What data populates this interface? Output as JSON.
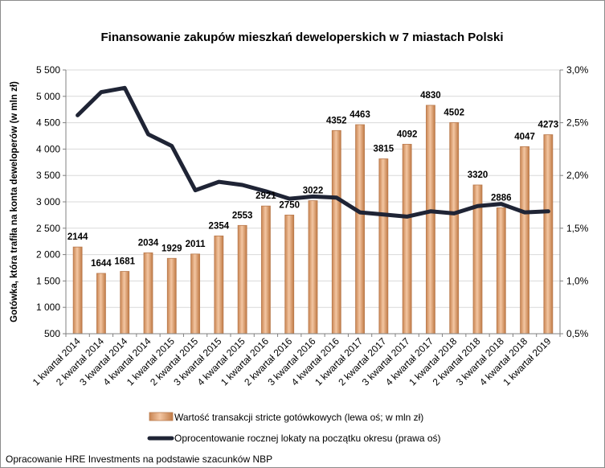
{
  "chart_data": {
    "type": "bar+line",
    "title": "Finansowanie zakupów mieszkań deweloperskich w 7 miastach Polski",
    "ylabel_left": "Gotówka, która trafiła na konta deweloperów (w mln zł)",
    "ylim_left": [
      500,
      5500
    ],
    "yticks_left": [
      "500",
      "1 000",
      "1 500",
      "2 000",
      "2 500",
      "3 000",
      "3 500",
      "4 000",
      "4 500",
      "5 000",
      "5 500"
    ],
    "ylim_right": [
      0.5,
      3.0
    ],
    "yticks_right": [
      "0,5%",
      "1,0%",
      "1,5%",
      "2,0%",
      "2,5%",
      "3,0%"
    ],
    "categories": [
      "1 kwartał 2014",
      "2 kwartał 2014",
      "3 kwartał 2014",
      "4 kwartał 2014",
      "1 kwartał 2015",
      "2 kwartał 2015",
      "3 kwartał 2015",
      "4 kwartał 2015",
      "1 kwartał 2016",
      "2 kwartał 2016",
      "3 kwartał 2016",
      "4 kwartał 2016",
      "1 kwartał 2017",
      "2 kwartał 2017",
      "3 kwartał 2017",
      "4 kwartał 2017",
      "1 kwartał 2018",
      "2 kwartał 2018",
      "3 kwartał 2018",
      "4 kwartał 2018",
      "1 kwartał 2019"
    ],
    "series": [
      {
        "name": "Wartość transakcji stricte gotówkowych (lewa oś; w mln zł)",
        "axis": "left",
        "kind": "bar",
        "values": [
          2144,
          1644,
          1681,
          2034,
          1929,
          2011,
          2354,
          2553,
          2921,
          2750,
          3022,
          4352,
          4463,
          3815,
          4092,
          4830,
          4502,
          3320,
          2886,
          4047,
          4273
        ],
        "labels": [
          "2144",
          "1644",
          "1681",
          "2034",
          "1929",
          "2011",
          "2354",
          "2553",
          "2921",
          "2750",
          "3022",
          "4352",
          "4463",
          "3815",
          "4092",
          "4830",
          "4502",
          "3320",
          "2886",
          "4047",
          "4273"
        ]
      },
      {
        "name": "Oprocentowanie rocznej lokaty na początku okresu (prawa oś)",
        "axis": "right",
        "kind": "line",
        "values": [
          2.57,
          2.79,
          2.83,
          2.39,
          2.28,
          1.86,
          1.94,
          1.91,
          1.85,
          1.78,
          1.8,
          1.79,
          1.65,
          1.63,
          1.61,
          1.66,
          1.64,
          1.71,
          1.73,
          1.65,
          1.66
        ]
      }
    ],
    "colors": {
      "bar": "#E0A173",
      "bar_edge": "#B97A4E",
      "line": "#1F2435",
      "grid": "#D9D9D9",
      "axis": "#808080"
    },
    "source": "Opracowanie HRE Investments na podstawie szacunków NBP"
  }
}
